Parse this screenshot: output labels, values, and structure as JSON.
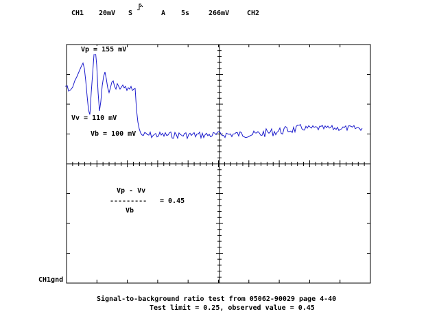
{
  "header": {
    "channel": "CH1",
    "volts_div": "20mV",
    "slope_mode": "S",
    "slope_icon": "rising-edge-icon",
    "trigger_mode": "A",
    "time_div": "5s",
    "trigger_level": "266mV",
    "trigger_source": "CH2"
  },
  "annotations": {
    "vp": "Vp = 155 mV",
    "vv": "Vv = 110 mV",
    "vb": "Vb = 100 mV"
  },
  "formula": {
    "numerator": "Vp - Vv",
    "bar": "---------",
    "denominator": "Vb",
    "result": "= 0.45"
  },
  "ground_label": "CH1gnd",
  "caption": {
    "line1": "Signal-to-background ratio test from 05062-90029 page 4-40",
    "line2": "Test limit = 0.25, observed value = 0.45"
  },
  "colors": {
    "trace": "#1a1acc",
    "grid": "#000000"
  }
}
